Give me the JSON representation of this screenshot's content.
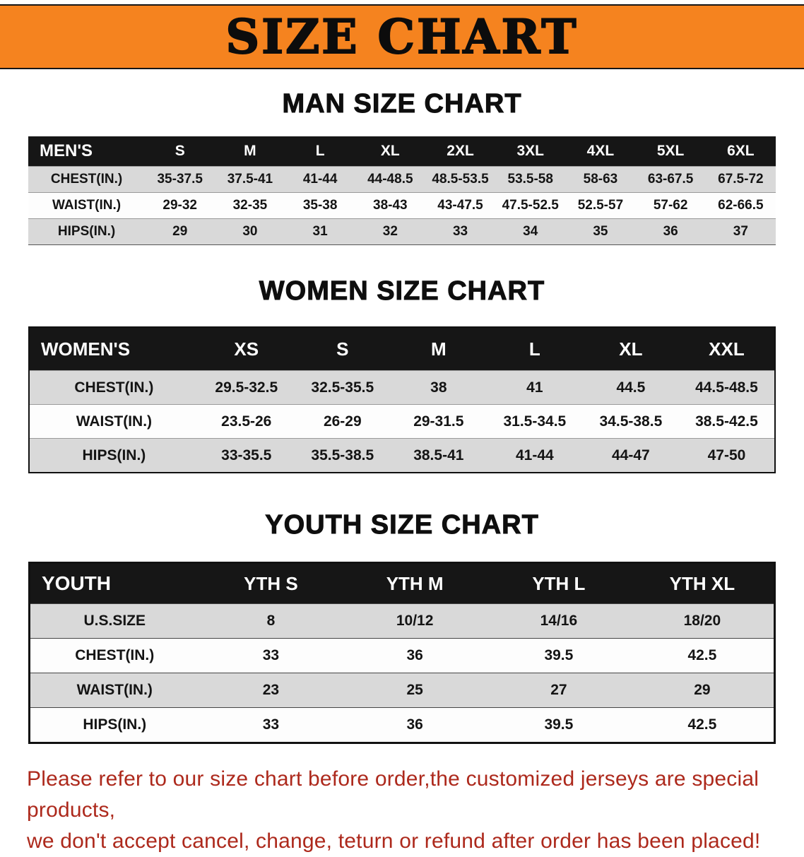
{
  "banner": {
    "title": "SIZE CHART",
    "background_color": "#f5831f"
  },
  "sections": [
    {
      "id": "man",
      "title": "MAN SIZE CHART",
      "table": {
        "header": [
          "MEN'S",
          "S",
          "M",
          "L",
          "XL",
          "2XL",
          "3XL",
          "4XL",
          "5XL",
          "6XL"
        ],
        "rows": [
          [
            "CHEST(IN.)",
            "35-37.5",
            "37.5-41",
            "41-44",
            "44-48.5",
            "48.5-53.5",
            "53.5-58",
            "58-63",
            "63-67.5",
            "67.5-72"
          ],
          [
            "WAIST(IN.)",
            "29-32",
            "32-35",
            "35-38",
            "38-43",
            "43-47.5",
            "47.5-52.5",
            "52.5-57",
            "57-62",
            "62-66.5"
          ],
          [
            "HIPS(IN.)",
            "29",
            "30",
            "31",
            "32",
            "33",
            "34",
            "35",
            "36",
            "37"
          ]
        ]
      }
    },
    {
      "id": "women",
      "title": "WOMEN SIZE CHART",
      "table": {
        "header": [
          "WOMEN'S",
          "XS",
          "S",
          "M",
          "L",
          "XL",
          "XXL"
        ],
        "rows": [
          [
            "CHEST(IN.)",
            "29.5-32.5",
            "32.5-35.5",
            "38",
            "41",
            "44.5",
            "44.5-48.5"
          ],
          [
            "WAIST(IN.)",
            "23.5-26",
            "26-29",
            "29-31.5",
            "31.5-34.5",
            "34.5-38.5",
            "38.5-42.5"
          ],
          [
            "HIPS(IN.)",
            "33-35.5",
            "35.5-38.5",
            "38.5-41",
            "41-44",
            "44-47",
            "47-50"
          ]
        ]
      }
    },
    {
      "id": "youth",
      "title": "YOUTH SIZE CHART",
      "table": {
        "header": [
          "YOUTH",
          "YTH S",
          "YTH M",
          "YTH L",
          "YTH XL"
        ],
        "rows": [
          [
            "U.S.SIZE",
            "8",
            "10/12",
            "14/16",
            "18/20"
          ],
          [
            "CHEST(IN.)",
            "33",
            "36",
            "39.5",
            "42.5"
          ],
          [
            "WAIST(IN.)",
            "23",
            "25",
            "27",
            "29"
          ],
          [
            "HIPS(IN.)",
            "33",
            "36",
            "39.5",
            "42.5"
          ]
        ]
      }
    }
  ],
  "footer": {
    "lines": [
      "Please refer to our size chart before order,the customized jerseys are special products,",
      "we don't accept cancel, change, teturn or refund after order has been placed!"
    ]
  },
  "colors": {
    "banner_orange": "#f5831f",
    "table_header_black": "#161616",
    "row_stripe_gray": "#d9d9d9",
    "notice_red": "#ad291c"
  }
}
